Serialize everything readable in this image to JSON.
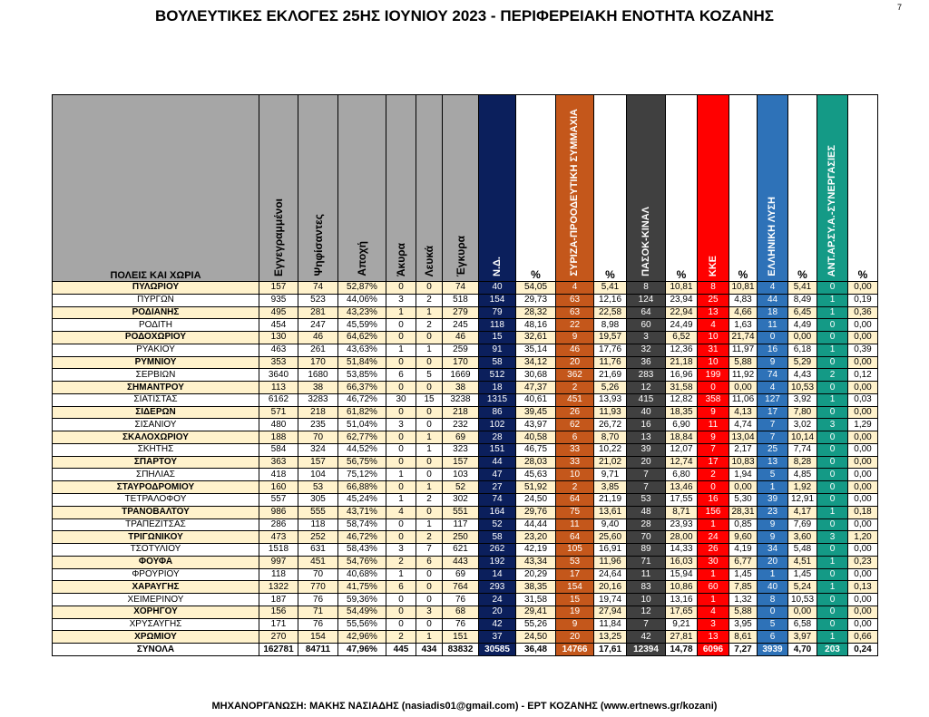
{
  "page": {
    "title": "ΒΟΥΛΕΥΤΙΚΕΣ ΕΚΛΟΓΕΣ 25ΗΣ ΙΟΥΝΙΟΥ 2023 - ΠΕΡΙΦΕΡΕΙΑΚΗ ΕΝΟΤΗΤΑ ΚΟΖΑΝΗΣ",
    "page_number": "7",
    "footer": "ΜΗΧΑΝΟΡΓΑΝΩΣΗ: ΜΑΚΗΣ ΝΑΣΙΑΔΗΣ (nasiadis01@gmail.com) - ΕΡΤ ΚΟΖΑΝΗΣ (www.ertnews.gr/kozani)"
  },
  "colors": {
    "header_gray": "#a6a6a6",
    "stripe": "#fff2cc"
  },
  "table": {
    "name_header": "ΠΟΛΕΙΣ ΚΑΙ ΧΩΡΙΑ",
    "stat_headers": [
      "Εγγεγραμμένοι",
      "Ψηφίσαντες",
      "Αποχή",
      "Άκυρα",
      "Λευκά",
      "Έγκυρα"
    ],
    "percent_header": "%",
    "parties": [
      {
        "name": "Ν.Δ.",
        "color": "#0b1f5c"
      },
      {
        "name": "ΣΥΡΙΖΑ-ΠΡΟΟΔΕΥΤΙΚΗ ΣΥΜΜΑΧΙΑ",
        "color": "#c4571b"
      },
      {
        "name": "ΠΑΣΟΚ-ΚΙΝΑΛ",
        "color": "#404040"
      },
      {
        "name": "ΚΚΕ",
        "color": "#ff0000"
      },
      {
        "name": "ΕΛΛΗΝΙΚΗ ΛΥΣΗ",
        "color": "#2e72b8"
      },
      {
        "name": "ΑΝΤ.ΑΡ.ΣΥ.Α.-ΣΥΝΕΡΓΑΣΙΕΣ",
        "color": "#149a86"
      }
    ],
    "rows": [
      {
        "name": "ΠΥΛΩΡΙΟΥ",
        "stats": [
          "157",
          "74",
          "52,87%",
          "0",
          "0",
          "74"
        ],
        "results": [
          [
            "40",
            "54,05"
          ],
          [
            "4",
            "5,41"
          ],
          [
            "8",
            "10,81"
          ],
          [
            "8",
            "10,81"
          ],
          [
            "4",
            "5,41"
          ],
          [
            "0",
            "0,00"
          ]
        ]
      },
      {
        "name": "ΠΥΡΓΩΝ",
        "stats": [
          "935",
          "523",
          "44,06%",
          "3",
          "2",
          "518"
        ],
        "results": [
          [
            "154",
            "29,73"
          ],
          [
            "63",
            "12,16"
          ],
          [
            "124",
            "23,94"
          ],
          [
            "25",
            "4,83"
          ],
          [
            "44",
            "8,49"
          ],
          [
            "1",
            "0,19"
          ]
        ]
      },
      {
        "name": "ΡΟΔΙΑΝΗΣ",
        "stats": [
          "495",
          "281",
          "43,23%",
          "1",
          "1",
          "279"
        ],
        "results": [
          [
            "79",
            "28,32"
          ],
          [
            "63",
            "22,58"
          ],
          [
            "64",
            "22,94"
          ],
          [
            "13",
            "4,66"
          ],
          [
            "18",
            "6,45"
          ],
          [
            "1",
            "0,36"
          ]
        ]
      },
      {
        "name": "ΡΟΔΙΤΗ",
        "stats": [
          "454",
          "247",
          "45,59%",
          "0",
          "2",
          "245"
        ],
        "results": [
          [
            "118",
            "48,16"
          ],
          [
            "22",
            "8,98"
          ],
          [
            "60",
            "24,49"
          ],
          [
            "4",
            "1,63"
          ],
          [
            "11",
            "4,49"
          ],
          [
            "0",
            "0,00"
          ]
        ]
      },
      {
        "name": "ΡΟΔΟΧΩΡΙΟΥ",
        "stats": [
          "130",
          "46",
          "64,62%",
          "0",
          "0",
          "46"
        ],
        "results": [
          [
            "15",
            "32,61"
          ],
          [
            "9",
            "19,57"
          ],
          [
            "3",
            "6,52"
          ],
          [
            "10",
            "21,74"
          ],
          [
            "0",
            "0,00"
          ],
          [
            "0",
            "0,00"
          ]
        ]
      },
      {
        "name": "ΡΥΑΚΙΟΥ",
        "stats": [
          "463",
          "261",
          "43,63%",
          "1",
          "1",
          "259"
        ],
        "results": [
          [
            "91",
            "35,14"
          ],
          [
            "46",
            "17,76"
          ],
          [
            "32",
            "12,36"
          ],
          [
            "31",
            "11,97"
          ],
          [
            "16",
            "6,18"
          ],
          [
            "1",
            "0,39"
          ]
        ]
      },
      {
        "name": "ΡΥΜΝΙΟΥ",
        "stats": [
          "353",
          "170",
          "51,84%",
          "0",
          "0",
          "170"
        ],
        "results": [
          [
            "58",
            "34,12"
          ],
          [
            "20",
            "11,76"
          ],
          [
            "36",
            "21,18"
          ],
          [
            "10",
            "5,88"
          ],
          [
            "9",
            "5,29"
          ],
          [
            "0",
            "0,00"
          ]
        ]
      },
      {
        "name": "ΣΕΡΒΙΩΝ",
        "stats": [
          "3640",
          "1680",
          "53,85%",
          "6",
          "5",
          "1669"
        ],
        "results": [
          [
            "512",
            "30,68"
          ],
          [
            "362",
            "21,69"
          ],
          [
            "283",
            "16,96"
          ],
          [
            "199",
            "11,92"
          ],
          [
            "74",
            "4,43"
          ],
          [
            "2",
            "0,12"
          ]
        ]
      },
      {
        "name": "ΣΗΜΑΝΤΡΟΥ",
        "stats": [
          "113",
          "38",
          "66,37%",
          "0",
          "0",
          "38"
        ],
        "results": [
          [
            "18",
            "47,37"
          ],
          [
            "2",
            "5,26"
          ],
          [
            "12",
            "31,58"
          ],
          [
            "0",
            "0,00"
          ],
          [
            "4",
            "10,53"
          ],
          [
            "0",
            "0,00"
          ]
        ]
      },
      {
        "name": "ΣΙΑΤΙΣΤΑΣ",
        "stats": [
          "6162",
          "3283",
          "46,72%",
          "30",
          "15",
          "3238"
        ],
        "results": [
          [
            "1315",
            "40,61"
          ],
          [
            "451",
            "13,93"
          ],
          [
            "415",
            "12,82"
          ],
          [
            "358",
            "11,06"
          ],
          [
            "127",
            "3,92"
          ],
          [
            "1",
            "0,03"
          ]
        ]
      },
      {
        "name": "ΣΙΔΕΡΩΝ",
        "stats": [
          "571",
          "218",
          "61,82%",
          "0",
          "0",
          "218"
        ],
        "results": [
          [
            "86",
            "39,45"
          ],
          [
            "26",
            "11,93"
          ],
          [
            "40",
            "18,35"
          ],
          [
            "9",
            "4,13"
          ],
          [
            "17",
            "7,80"
          ],
          [
            "0",
            "0,00"
          ]
        ]
      },
      {
        "name": "ΣΙΣΑΝΙΟΥ",
        "stats": [
          "480",
          "235",
          "51,04%",
          "3",
          "0",
          "232"
        ],
        "results": [
          [
            "102",
            "43,97"
          ],
          [
            "62",
            "26,72"
          ],
          [
            "16",
            "6,90"
          ],
          [
            "11",
            "4,74"
          ],
          [
            "7",
            "3,02"
          ],
          [
            "3",
            "1,29"
          ]
        ]
      },
      {
        "name": "ΣΚΑΛΟΧΩΡΙΟΥ",
        "stats": [
          "188",
          "70",
          "62,77%",
          "0",
          "1",
          "69"
        ],
        "results": [
          [
            "28",
            "40,58"
          ],
          [
            "6",
            "8,70"
          ],
          [
            "13",
            "18,84"
          ],
          [
            "9",
            "13,04"
          ],
          [
            "7",
            "10,14"
          ],
          [
            "0",
            "0,00"
          ]
        ]
      },
      {
        "name": "ΣΚΗΤΗΣ",
        "stats": [
          "584",
          "324",
          "44,52%",
          "0",
          "1",
          "323"
        ],
        "results": [
          [
            "151",
            "46,75"
          ],
          [
            "33",
            "10,22"
          ],
          [
            "39",
            "12,07"
          ],
          [
            "7",
            "2,17"
          ],
          [
            "25",
            "7,74"
          ],
          [
            "0",
            "0,00"
          ]
        ]
      },
      {
        "name": "ΣΠΑΡΤΟΥ",
        "stats": [
          "363",
          "157",
          "56,75%",
          "0",
          "0",
          "157"
        ],
        "results": [
          [
            "44",
            "28,03"
          ],
          [
            "33",
            "21,02"
          ],
          [
            "20",
            "12,74"
          ],
          [
            "17",
            "10,83"
          ],
          [
            "13",
            "8,28"
          ],
          [
            "0",
            "0,00"
          ]
        ]
      },
      {
        "name": "ΣΠΗΛΙΑΣ",
        "stats": [
          "418",
          "104",
          "75,12%",
          "1",
          "0",
          "103"
        ],
        "results": [
          [
            "47",
            "45,63"
          ],
          [
            "10",
            "9,71"
          ],
          [
            "7",
            "6,80"
          ],
          [
            "2",
            "1,94"
          ],
          [
            "5",
            "4,85"
          ],
          [
            "0",
            "0,00"
          ]
        ]
      },
      {
        "name": "ΣΤΑΥΡΟΔΡΟΜΙΟΥ",
        "stats": [
          "160",
          "53",
          "66,88%",
          "0",
          "1",
          "52"
        ],
        "results": [
          [
            "27",
            "51,92"
          ],
          [
            "2",
            "3,85"
          ],
          [
            "7",
            "13,46"
          ],
          [
            "0",
            "0,00"
          ],
          [
            "1",
            "1,92"
          ],
          [
            "0",
            "0,00"
          ]
        ]
      },
      {
        "name": "ΤΕΤΡΑΛΟΦΟΥ",
        "stats": [
          "557",
          "305",
          "45,24%",
          "1",
          "2",
          "302"
        ],
        "results": [
          [
            "74",
            "24,50"
          ],
          [
            "64",
            "21,19"
          ],
          [
            "53",
            "17,55"
          ],
          [
            "16",
            "5,30"
          ],
          [
            "39",
            "12,91"
          ],
          [
            "0",
            "0,00"
          ]
        ]
      },
      {
        "name": "ΤΡΑΝΟΒΑΛΤΟΥ",
        "stats": [
          "986",
          "555",
          "43,71%",
          "4",
          "0",
          "551"
        ],
        "results": [
          [
            "164",
            "29,76"
          ],
          [
            "75",
            "13,61"
          ],
          [
            "48",
            "8,71"
          ],
          [
            "156",
            "28,31"
          ],
          [
            "23",
            "4,17"
          ],
          [
            "1",
            "0,18"
          ]
        ]
      },
      {
        "name": "ΤΡΑΠΕΖΙΤΣΑΣ",
        "stats": [
          "286",
          "118",
          "58,74%",
          "0",
          "1",
          "117"
        ],
        "results": [
          [
            "52",
            "44,44"
          ],
          [
            "11",
            "9,40"
          ],
          [
            "28",
            "23,93"
          ],
          [
            "1",
            "0,85"
          ],
          [
            "9",
            "7,69"
          ],
          [
            "0",
            "0,00"
          ]
        ]
      },
      {
        "name": "ΤΡΙΓΩΝΙΚΟΥ",
        "stats": [
          "473",
          "252",
          "46,72%",
          "0",
          "2",
          "250"
        ],
        "results": [
          [
            "58",
            "23,20"
          ],
          [
            "64",
            "25,60"
          ],
          [
            "70",
            "28,00"
          ],
          [
            "24",
            "9,60"
          ],
          [
            "9",
            "3,60"
          ],
          [
            "3",
            "1,20"
          ]
        ]
      },
      {
        "name": "ΤΣΟΤΥΛΙΟΥ",
        "stats": [
          "1518",
          "631",
          "58,43%",
          "3",
          "7",
          "621"
        ],
        "results": [
          [
            "262",
            "42,19"
          ],
          [
            "105",
            "16,91"
          ],
          [
            "89",
            "14,33"
          ],
          [
            "26",
            "4,19"
          ],
          [
            "34",
            "5,48"
          ],
          [
            "0",
            "0,00"
          ]
        ]
      },
      {
        "name": "ΦΟΥΦΑ",
        "stats": [
          "997",
          "451",
          "54,76%",
          "2",
          "6",
          "443"
        ],
        "results": [
          [
            "192",
            "43,34"
          ],
          [
            "53",
            "11,96"
          ],
          [
            "71",
            "16,03"
          ],
          [
            "30",
            "6,77"
          ],
          [
            "20",
            "4,51"
          ],
          [
            "1",
            "0,23"
          ]
        ]
      },
      {
        "name": "ΦΡΟΥΡΙΟΥ",
        "stats": [
          "118",
          "70",
          "40,68%",
          "1",
          "0",
          "69"
        ],
        "results": [
          [
            "14",
            "20,29"
          ],
          [
            "17",
            "24,64"
          ],
          [
            "11",
            "15,94"
          ],
          [
            "1",
            "1,45"
          ],
          [
            "1",
            "1,45"
          ],
          [
            "0",
            "0,00"
          ]
        ]
      },
      {
        "name": "ΧΑΡΑΥΓΗΣ",
        "stats": [
          "1322",
          "770",
          "41,75%",
          "6",
          "0",
          "764"
        ],
        "results": [
          [
            "293",
            "38,35"
          ],
          [
            "154",
            "20,16"
          ],
          [
            "83",
            "10,86"
          ],
          [
            "60",
            "7,85"
          ],
          [
            "40",
            "5,24"
          ],
          [
            "1",
            "0,13"
          ]
        ]
      },
      {
        "name": "ΧΕΙΜΕΡΙΝΟΥ",
        "stats": [
          "187",
          "76",
          "59,36%",
          "0",
          "0",
          "76"
        ],
        "results": [
          [
            "24",
            "31,58"
          ],
          [
            "15",
            "19,74"
          ],
          [
            "10",
            "13,16"
          ],
          [
            "1",
            "1,32"
          ],
          [
            "8",
            "10,53"
          ],
          [
            "0",
            "0,00"
          ]
        ]
      },
      {
        "name": "ΧΟΡΗΓΟΥ",
        "stats": [
          "156",
          "71",
          "54,49%",
          "0",
          "3",
          "68"
        ],
        "results": [
          [
            "20",
            "29,41"
          ],
          [
            "19",
            "27,94"
          ],
          [
            "12",
            "17,65"
          ],
          [
            "4",
            "5,88"
          ],
          [
            "0",
            "0,00"
          ],
          [
            "0",
            "0,00"
          ]
        ]
      },
      {
        "name": "ΧΡΥΣΑΥΓΗΣ",
        "stats": [
          "171",
          "76",
          "55,56%",
          "0",
          "0",
          "76"
        ],
        "results": [
          [
            "42",
            "55,26"
          ],
          [
            "9",
            "11,84"
          ],
          [
            "7",
            "9,21"
          ],
          [
            "3",
            "3,95"
          ],
          [
            "5",
            "6,58"
          ],
          [
            "0",
            "0,00"
          ]
        ]
      },
      {
        "name": "ΧΡΩΜΙΟΥ",
        "stats": [
          "270",
          "154",
          "42,96%",
          "2",
          "1",
          "151"
        ],
        "results": [
          [
            "37",
            "24,50"
          ],
          [
            "20",
            "13,25"
          ],
          [
            "42",
            "27,81"
          ],
          [
            "13",
            "8,61"
          ],
          [
            "6",
            "3,97"
          ],
          [
            "1",
            "0,66"
          ]
        ]
      }
    ],
    "totals": {
      "name": "ΣΥΝΟΛΑ",
      "stats": [
        "162781",
        "84711",
        "47,96%",
        "445",
        "434",
        "83832"
      ],
      "results": [
        [
          "30585",
          "36,48"
        ],
        [
          "14766",
          "17,61"
        ],
        [
          "12394",
          "14,78"
        ],
        [
          "6096",
          "7,27"
        ],
        [
          "3939",
          "4,70"
        ],
        [
          "203",
          "0,24"
        ]
      ]
    }
  }
}
